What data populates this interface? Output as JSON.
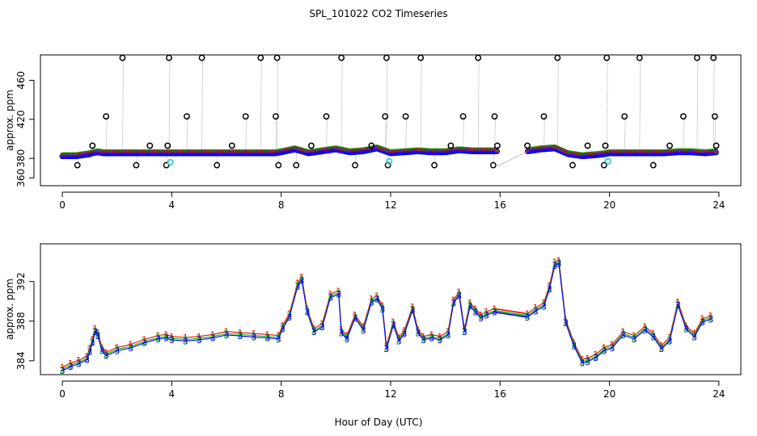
{
  "title": "SPL_101022  CO2 Timeseries",
  "xlabel": "Hour of Day (UTC)",
  "chart_data": [
    {
      "type": "scatter",
      "name": "top-panel",
      "ylabel": "approx. ppm",
      "xlim": [
        -0.8,
        24.8
      ],
      "ylim": [
        352,
        486
      ],
      "xticks": [
        0,
        4,
        8,
        12,
        16,
        20,
        24
      ],
      "yticks": [
        360,
        380,
        420,
        460
      ],
      "x": [
        0.0,
        0.5,
        1.0,
        1.1,
        1.3,
        1.5,
        2.0,
        2.5,
        3.0,
        3.5,
        3.8,
        4.0,
        4.5,
        5.0,
        5.5,
        6.0,
        6.5,
        7.0,
        7.5,
        7.8,
        8.0,
        8.5,
        9.0,
        9.5,
        10.0,
        10.5,
        11.0,
        11.5,
        12.0,
        12.5,
        13.0,
        13.5,
        14.0,
        14.5,
        15.0,
        15.5,
        15.8,
        17.0,
        17.5,
        18.0,
        18.5,
        19.0,
        19.5,
        19.8,
        20.0,
        20.5,
        21.0,
        21.5,
        22.0,
        22.5,
        23.0,
        23.5,
        23.9
      ],
      "y": [
        383,
        383,
        385,
        386,
        387,
        386,
        386,
        386,
        386,
        386,
        386,
        386,
        386,
        386,
        386,
        386,
        386,
        386,
        386,
        386,
        387,
        390,
        386,
        388,
        390,
        387,
        388,
        391,
        386,
        387,
        388,
        387,
        387,
        389,
        388,
        388,
        388,
        388,
        390,
        391,
        385,
        383,
        384,
        385,
        386,
        386,
        386,
        386,
        386,
        387,
        387,
        386,
        387
      ],
      "outliers_x": [
        0.55,
        1.1,
        1.6,
        2.2,
        2.7,
        3.2,
        3.8,
        3.85,
        3.9,
        4.55,
        5.1,
        5.65,
        6.2,
        6.7,
        7.25,
        7.8,
        7.85,
        7.9,
        8.55,
        9.1,
        9.65,
        10.2,
        10.7,
        11.3,
        11.8,
        11.85,
        11.9,
        12.55,
        13.1,
        13.6,
        14.2,
        14.65,
        15.2,
        15.75,
        15.8,
        15.9,
        17.0,
        17.6,
        18.1,
        18.65,
        19.2,
        19.8,
        19.85,
        19.9,
        20.55,
        21.1,
        21.6,
        22.2,
        22.7,
        23.2,
        23.8,
        23.85,
        23.9
      ],
      "outliers_y": [
        373,
        393,
        423,
        483,
        373,
        393,
        373,
        393,
        483,
        423,
        483,
        373,
        393,
        423,
        483,
        423,
        483,
        373,
        373,
        393,
        423,
        483,
        373,
        393,
        423,
        483,
        373,
        423,
        483,
        373,
        393,
        423,
        483,
        373,
        423,
        393,
        393,
        423,
        483,
        373,
        393,
        373,
        393,
        483,
        423,
        483,
        373,
        393,
        423,
        483,
        483,
        423,
        393
      ],
      "cyan_points": [
        {
          "x": 3.95,
          "y": 376
        },
        {
          "x": 11.95,
          "y": 377
        },
        {
          "x": 19.95,
          "y": 377
        }
      ]
    },
    {
      "type": "line",
      "name": "bottom-panel",
      "ylabel": "approx. ppm",
      "xlim": [
        -0.8,
        24.8
      ],
      "ylim": [
        382.6,
        395.8
      ],
      "xticks": [
        0,
        4,
        8,
        12,
        16,
        20,
        24
      ],
      "yticks": [
        384,
        388,
        392
      ],
      "markers": [
        "1",
        "2",
        "3"
      ],
      "gap": [
        15.8,
        17.0
      ],
      "series": [
        {
          "name": "1",
          "color": "#ff0000",
          "offset": 0.35
        },
        {
          "name": "2",
          "color": "#00bb00",
          "offset": 0.15
        },
        {
          "name": "3",
          "color": "#0000ff",
          "offset": 0.0
        }
      ],
      "x": [
        0.0,
        0.3,
        0.6,
        0.9,
        1.0,
        1.1,
        1.2,
        1.3,
        1.45,
        1.6,
        2.0,
        2.5,
        3.0,
        3.5,
        3.8,
        4.0,
        4.5,
        5.0,
        5.5,
        6.0,
        6.5,
        7.0,
        7.5,
        7.9,
        8.05,
        8.3,
        8.6,
        8.75,
        8.95,
        9.2,
        9.5,
        9.8,
        10.1,
        10.2,
        10.4,
        10.7,
        11.0,
        11.3,
        11.5,
        11.7,
        11.85,
        12.1,
        12.3,
        12.5,
        12.8,
        13.0,
        13.2,
        13.5,
        13.8,
        14.1,
        14.3,
        14.5,
        14.7,
        14.9,
        15.1,
        15.3,
        15.5,
        15.8,
        17.0,
        17.3,
        17.6,
        17.8,
        18.0,
        18.15,
        18.4,
        18.7,
        19.0,
        19.2,
        19.5,
        19.8,
        20.1,
        20.5,
        20.9,
        21.3,
        21.6,
        21.9,
        22.2,
        22.5,
        22.8,
        23.1,
        23.4,
        23.7
      ],
      "values": [
        383.0,
        383.4,
        383.7,
        384.1,
        384.9,
        385.8,
        386.9,
        386.5,
        385.0,
        384.5,
        385.0,
        385.3,
        385.8,
        386.2,
        386.3,
        386.1,
        386.0,
        386.1,
        386.3,
        386.6,
        386.5,
        386.4,
        386.3,
        386.2,
        387.2,
        388.4,
        391.5,
        392.1,
        388.9,
        386.9,
        387.4,
        390.4,
        390.7,
        386.8,
        386.2,
        388.3,
        387.1,
        389.9,
        390.2,
        389.2,
        385.2,
        387.6,
        386.0,
        386.7,
        389.1,
        386.8,
        386.1,
        386.3,
        386.1,
        386.6,
        389.8,
        390.6,
        386.9,
        389.5,
        388.9,
        388.3,
        388.6,
        388.9,
        388.4,
        389.0,
        389.5,
        391.2,
        393.6,
        393.8,
        387.8,
        385.5,
        383.8,
        383.9,
        384.3,
        385.0,
        385.3,
        386.6,
        386.2,
        387.1,
        386.4,
        385.2,
        386.0,
        389.6,
        387.2,
        386.4,
        387.9,
        388.2
      ]
    }
  ]
}
